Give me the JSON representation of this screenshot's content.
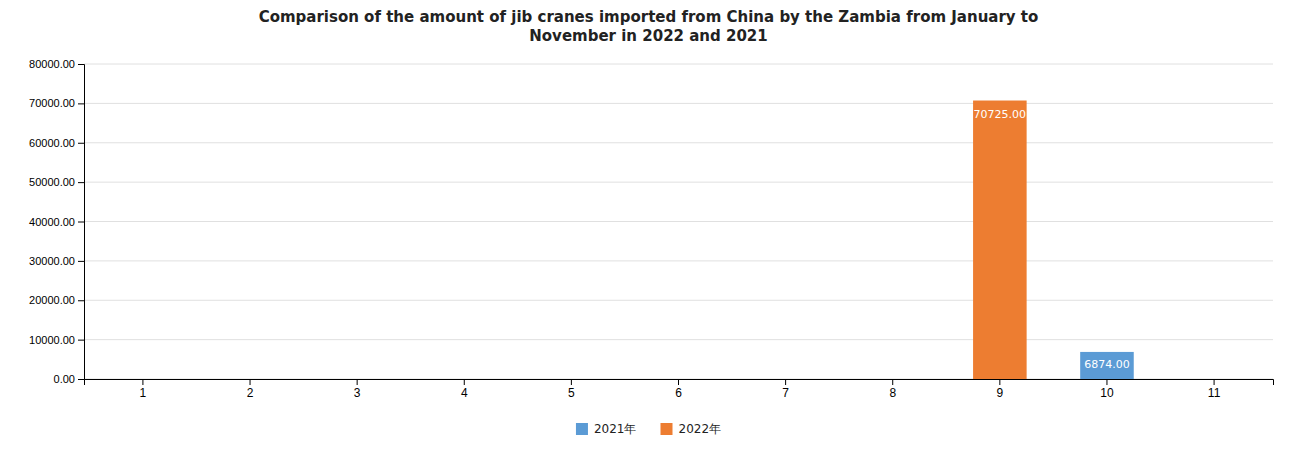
{
  "chart_data": {
    "type": "bar",
    "title": "Comparison of the amount of jib cranes imported from China by the Zambia from January to\nNovember in 2022 and 2021",
    "categories": [
      "1",
      "2",
      "3",
      "4",
      "5",
      "6",
      "7",
      "8",
      "9",
      "10",
      "11"
    ],
    "series": [
      {
        "name": "2021年",
        "color": "#5B9BD5",
        "values": [
          0,
          0,
          0,
          0,
          0,
          0,
          0,
          0,
          0,
          6874.0,
          0
        ],
        "value_labels": [
          null,
          null,
          null,
          null,
          null,
          null,
          null,
          null,
          null,
          "6874.00",
          null
        ]
      },
      {
        "name": "2022年",
        "color": "#ED7D31",
        "values": [
          0,
          0,
          0,
          0,
          0,
          0,
          0,
          0,
          70725.0,
          0,
          0
        ],
        "value_labels": [
          null,
          null,
          null,
          null,
          null,
          null,
          null,
          null,
          "70725.00",
          null,
          null
        ]
      }
    ],
    "ylim": [
      0,
      80000
    ],
    "yticks": [
      {
        "value": 0,
        "label": "0.00"
      },
      {
        "value": 10000,
        "label": "10000.00"
      },
      {
        "value": 20000,
        "label": "20000.00"
      },
      {
        "value": 30000,
        "label": "30000.00"
      },
      {
        "value": 40000,
        "label": "40000.00"
      },
      {
        "value": 50000,
        "label": "50000.00"
      },
      {
        "value": 60000,
        "label": "60000.00"
      },
      {
        "value": 70000,
        "label": "70000.00"
      },
      {
        "value": 80000,
        "label": "80000.00"
      }
    ],
    "grid": true,
    "data_labels": true,
    "legend": "bottom"
  }
}
